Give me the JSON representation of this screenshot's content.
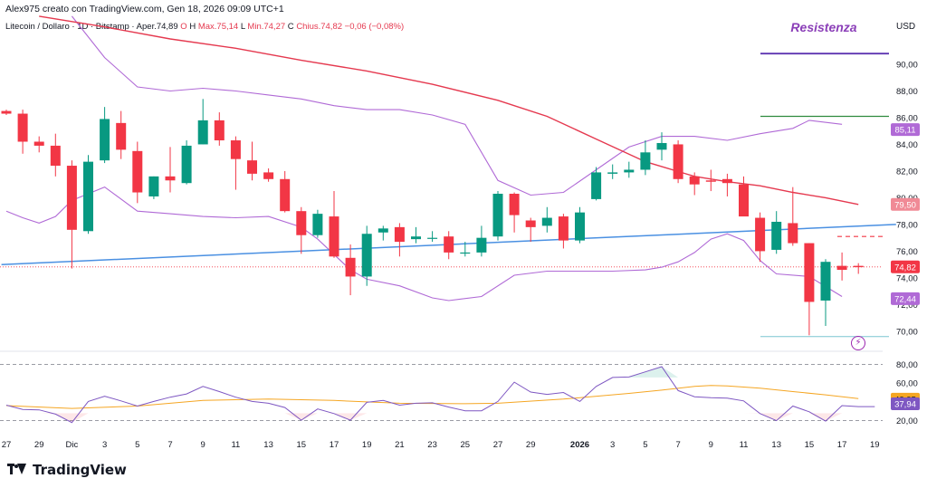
{
  "header": {
    "byline": "Alex975 creato con TradingView.com, Gen 18, 2026 09:09 UTC+1",
    "symbol": "Litecoin / Dollaro · 1D · Bitstamp",
    "open_label": "O",
    "open_text": "Aper.74,89",
    "high_text": "H",
    "high_value": "Max.75,14",
    "low_text": "L",
    "low_value": "Min.74,27",
    "close_text": "C",
    "close_value": "Chius.74,82",
    "change_value": "−0,06 (−0,08%)"
  },
  "currency": "USD",
  "annotation": "Resistenza",
  "brand": "TradingView",
  "colors": {
    "up": "#089981",
    "down": "#f23645",
    "ma": "#e5394f",
    "bb": "#b06ad6",
    "trend": "#4a90e2",
    "rsi": "#7e57c2",
    "rsi_ma": "#f5a623",
    "resistance": "#5e35b1",
    "green_level": "#2e8b3e"
  },
  "chart_data": [
    {
      "type": "candlestick",
      "title": "Litecoin / Dollaro · 1D · Bitstamp",
      "ylim": [
        68.5,
        94
      ],
      "y_ticks": [
        70,
        72,
        74,
        76,
        78,
        80,
        82,
        84,
        86,
        88,
        90
      ],
      "y_tick_labels": [
        "70,00",
        "72,00",
        "74,00",
        "76,00",
        "78,00",
        "80,00",
        "82,00",
        "84,00",
        "86,00",
        "88,00",
        "90,00"
      ],
      "x_ticks": [
        {
          "i": 0,
          "label": "27"
        },
        {
          "i": 2,
          "label": "29"
        },
        {
          "i": 4,
          "label": "Dic"
        },
        {
          "i": 6,
          "label": "3"
        },
        {
          "i": 8,
          "label": "5"
        },
        {
          "i": 10,
          "label": "7"
        },
        {
          "i": 12,
          "label": "9"
        },
        {
          "i": 14,
          "label": "11"
        },
        {
          "i": 16,
          "label": "13"
        },
        {
          "i": 18,
          "label": "15"
        },
        {
          "i": 20,
          "label": "17"
        },
        {
          "i": 22,
          "label": "19"
        },
        {
          "i": 24,
          "label": "21"
        },
        {
          "i": 26,
          "label": "23"
        },
        {
          "i": 28,
          "label": "25"
        },
        {
          "i": 30,
          "label": "27"
        },
        {
          "i": 32,
          "label": "29"
        },
        {
          "i": 35,
          "label": "2026"
        },
        {
          "i": 37,
          "label": "3"
        },
        {
          "i": 39,
          "label": "5"
        },
        {
          "i": 41,
          "label": "7"
        },
        {
          "i": 43,
          "label": "9"
        },
        {
          "i": 45,
          "label": "11"
        },
        {
          "i": 47,
          "label": "13"
        },
        {
          "i": 49,
          "label": "15"
        },
        {
          "i": 51,
          "label": "17"
        },
        {
          "i": 53,
          "label": "19"
        }
      ],
      "candles": [
        {
          "o": 86.5,
          "h": 86.6,
          "l": 86.2,
          "c": 86.3
        },
        {
          "o": 86.3,
          "h": 86.6,
          "l": 83.3,
          "c": 84.2
        },
        {
          "o": 84.2,
          "h": 84.6,
          "l": 83.4,
          "c": 83.9
        },
        {
          "o": 83.9,
          "h": 84.8,
          "l": 81.6,
          "c": 82.4
        },
        {
          "o": 82.4,
          "h": 82.8,
          "l": 74.7,
          "c": 77.6
        },
        {
          "o": 77.5,
          "h": 83.2,
          "l": 77.3,
          "c": 82.7
        },
        {
          "o": 82.8,
          "h": 86.8,
          "l": 82.6,
          "c": 85.9
        },
        {
          "o": 85.6,
          "h": 86.5,
          "l": 82.9,
          "c": 83.6
        },
        {
          "o": 83.5,
          "h": 84.2,
          "l": 79.6,
          "c": 80.4
        },
        {
          "o": 80.1,
          "h": 81.6,
          "l": 79.9,
          "c": 81.6
        },
        {
          "o": 81.6,
          "h": 83.8,
          "l": 80.4,
          "c": 81.3
        },
        {
          "o": 81.1,
          "h": 84.3,
          "l": 81.0,
          "c": 83.9
        },
        {
          "o": 84.0,
          "h": 87.4,
          "l": 84.0,
          "c": 85.8
        },
        {
          "o": 85.8,
          "h": 86.4,
          "l": 83.9,
          "c": 84.3
        },
        {
          "o": 84.3,
          "h": 84.6,
          "l": 80.6,
          "c": 82.9
        },
        {
          "o": 82.8,
          "h": 84.2,
          "l": 81.3,
          "c": 81.8
        },
        {
          "o": 81.9,
          "h": 82.2,
          "l": 81.2,
          "c": 81.4
        },
        {
          "o": 81.4,
          "h": 82.0,
          "l": 78.9,
          "c": 79.0
        },
        {
          "o": 79.0,
          "h": 79.3,
          "l": 75.8,
          "c": 77.2
        },
        {
          "o": 77.2,
          "h": 79.1,
          "l": 77.0,
          "c": 78.8
        },
        {
          "o": 78.6,
          "h": 80.5,
          "l": 75.5,
          "c": 75.6
        },
        {
          "o": 75.5,
          "h": 76.5,
          "l": 72.7,
          "c": 74.1
        },
        {
          "o": 74.1,
          "h": 77.9,
          "l": 73.4,
          "c": 77.3
        },
        {
          "o": 77.4,
          "h": 77.9,
          "l": 76.8,
          "c": 77.7
        },
        {
          "o": 77.8,
          "h": 78.1,
          "l": 75.6,
          "c": 76.7
        },
        {
          "o": 76.9,
          "h": 77.8,
          "l": 76.6,
          "c": 77.1
        },
        {
          "o": 77.0,
          "h": 77.5,
          "l": 76.7,
          "c": 77.0
        },
        {
          "o": 77.1,
          "h": 77.5,
          "l": 75.4,
          "c": 75.9
        },
        {
          "o": 75.9,
          "h": 76.7,
          "l": 75.6,
          "c": 75.9
        },
        {
          "o": 75.9,
          "h": 77.9,
          "l": 75.6,
          "c": 77.0
        },
        {
          "o": 77.1,
          "h": 80.5,
          "l": 76.8,
          "c": 80.3
        },
        {
          "o": 80.3,
          "h": 80.4,
          "l": 77.4,
          "c": 78.7
        },
        {
          "o": 78.3,
          "h": 78.5,
          "l": 76.7,
          "c": 77.8
        },
        {
          "o": 77.9,
          "h": 79.3,
          "l": 77.4,
          "c": 78.5
        },
        {
          "o": 78.6,
          "h": 78.8,
          "l": 76.2,
          "c": 76.8
        },
        {
          "o": 76.8,
          "h": 79.3,
          "l": 76.6,
          "c": 78.9
        },
        {
          "o": 79.9,
          "h": 82.3,
          "l": 79.8,
          "c": 81.9
        },
        {
          "o": 81.8,
          "h": 82.5,
          "l": 81.4,
          "c": 81.9
        },
        {
          "o": 81.9,
          "h": 82.7,
          "l": 81.5,
          "c": 82.1
        },
        {
          "o": 82.1,
          "h": 84.3,
          "l": 81.7,
          "c": 83.4
        },
        {
          "o": 83.6,
          "h": 84.9,
          "l": 82.8,
          "c": 84.1
        },
        {
          "o": 84.0,
          "h": 84.3,
          "l": 81.1,
          "c": 81.4
        },
        {
          "o": 81.6,
          "h": 81.9,
          "l": 80.2,
          "c": 81.0
        },
        {
          "o": 81.3,
          "h": 82.1,
          "l": 80.5,
          "c": 81.2
        },
        {
          "o": 81.4,
          "h": 81.8,
          "l": 80.1,
          "c": 81.1
        },
        {
          "o": 81.0,
          "h": 81.6,
          "l": 78.7,
          "c": 78.6
        },
        {
          "o": 78.5,
          "h": 78.9,
          "l": 75.2,
          "c": 76.0
        },
        {
          "o": 76.1,
          "h": 79.0,
          "l": 75.8,
          "c": 78.2
        },
        {
          "o": 78.1,
          "h": 80.8,
          "l": 76.4,
          "c": 76.6
        },
        {
          "o": 76.6,
          "h": 76.6,
          "l": 69.7,
          "c": 72.2
        },
        {
          "o": 72.3,
          "h": 75.4,
          "l": 70.4,
          "c": 75.2
        },
        {
          "o": 74.9,
          "h": 75.9,
          "l": 73.8,
          "c": 74.6
        },
        {
          "o": 74.9,
          "h": 75.1,
          "l": 74.3,
          "c": 74.8
        }
      ],
      "ma": [
        [
          2,
          93.6
        ],
        [
          6,
          92.8
        ],
        [
          10,
          91.9
        ],
        [
          14,
          91.2
        ],
        [
          18,
          90.3
        ],
        [
          22,
          89.5
        ],
        [
          26,
          88.5
        ],
        [
          30,
          87.3
        ],
        [
          33,
          86.1
        ],
        [
          36,
          84.4
        ],
        [
          39,
          82.7
        ],
        [
          42,
          81.6
        ],
        [
          44,
          81.2
        ],
        [
          46,
          80.9
        ],
        [
          48,
          80.4
        ],
        [
          50,
          80.0
        ],
        [
          52,
          79.5
        ]
      ],
      "bb_upper": [
        [
          4,
          93.6
        ],
        [
          6,
          90.5
        ],
        [
          8,
          88.3
        ],
        [
          10,
          88.0
        ],
        [
          12,
          88.2
        ],
        [
          14,
          88.0
        ],
        [
          16,
          87.7
        ],
        [
          18,
          87.4
        ],
        [
          20,
          86.9
        ],
        [
          22,
          86.6
        ],
        [
          24,
          86.6
        ],
        [
          26,
          86.2
        ],
        [
          28,
          85.5
        ],
        [
          30,
          81.3
        ],
        [
          32,
          80.2
        ],
        [
          34,
          80.4
        ],
        [
          36,
          82.1
        ],
        [
          38,
          83.8
        ],
        [
          40,
          84.6
        ],
        [
          42,
          84.6
        ],
        [
          44,
          84.3
        ],
        [
          46,
          84.8
        ],
        [
          48,
          85.2
        ],
        [
          49,
          85.8
        ],
        [
          51,
          85.5
        ]
      ],
      "bb_lower": [
        [
          0,
          79.0
        ],
        [
          1,
          78.5
        ],
        [
          2,
          78.1
        ],
        [
          3,
          78.6
        ],
        [
          4,
          79.8
        ],
        [
          6,
          80.8
        ],
        [
          8,
          79.0
        ],
        [
          10,
          78.8
        ],
        [
          12,
          78.6
        ],
        [
          14,
          78.5
        ],
        [
          16,
          78.6
        ],
        [
          18,
          77.8
        ],
        [
          19,
          76.9
        ],
        [
          21,
          74.6
        ],
        [
          22,
          73.9
        ],
        [
          24,
          73.4
        ],
        [
          26,
          72.5
        ],
        [
          27,
          72.3
        ],
        [
          29,
          72.6
        ],
        [
          31,
          74.2
        ],
        [
          33,
          74.5
        ],
        [
          35,
          74.5
        ],
        [
          37,
          74.5
        ],
        [
          39,
          74.6
        ],
        [
          40,
          74.8
        ],
        [
          41,
          75.2
        ],
        [
          42,
          75.9
        ],
        [
          43,
          76.9
        ],
        [
          44,
          77.3
        ],
        [
          45,
          76.8
        ],
        [
          46,
          75.3
        ],
        [
          47,
          74.3
        ],
        [
          49,
          74.1
        ],
        [
          51,
          72.6
        ]
      ],
      "trend_line": [
        [
          -0.3,
          75.0
        ],
        [
          54.3,
          78.0
        ]
      ],
      "resistance_level": 90.8,
      "green_level": 86.1,
      "support_level": 69.6,
      "dashed_level": 77.1,
      "last_price_level": 74.82,
      "price_labels": [
        {
          "value": 85.11,
          "text": "85,11",
          "color": "#b06ad6"
        },
        {
          "value": 79.5,
          "text": "79,50",
          "color": "#f08a96"
        },
        {
          "value": 74.82,
          "text": "74,82",
          "color": "#f23645"
        },
        {
          "value": 72.44,
          "text": "72,44",
          "color": "#b06ad6"
        }
      ]
    },
    {
      "type": "line",
      "title": "",
      "ylim": [
        10,
        90
      ],
      "levels": [
        80,
        20
      ],
      "y_tick_labels": [
        "80,00",
        "60,00",
        "40,00",
        "20,00"
      ],
      "y_ticks": [
        80,
        60,
        40,
        20
      ],
      "series": [
        {
          "values": [
            [
              0,
              36.5
            ],
            [
              1,
              32.0
            ],
            [
              2,
              31.5
            ],
            [
              3,
              27.0
            ],
            [
              4,
              18.0
            ],
            [
              5,
              40.5
            ],
            [
              6,
              46.0
            ],
            [
              7,
              41.0
            ],
            [
              8,
              35.5
            ],
            [
              9,
              40.5
            ],
            [
              10,
              45.0
            ],
            [
              11,
              48.5
            ],
            [
              12,
              56.5
            ],
            [
              13,
              51.0
            ],
            [
              14,
              45.0
            ],
            [
              15,
              40.5
            ],
            [
              16,
              38.5
            ],
            [
              17,
              34.0
            ],
            [
              18,
              20.5
            ],
            [
              19,
              32.5
            ],
            [
              20,
              27.5
            ],
            [
              21,
              20.5
            ],
            [
              22,
              39.5
            ],
            [
              23,
              41.5
            ],
            [
              24,
              36.5
            ],
            [
              25,
              38.5
            ],
            [
              26,
              39.0
            ],
            [
              27,
              34.5
            ],
            [
              28,
              30.5
            ],
            [
              29,
              30.5
            ],
            [
              30,
              40.5
            ],
            [
              31,
              61.0
            ],
            [
              32,
              50.5
            ],
            [
              33,
              48.0
            ],
            [
              34,
              50.0
            ],
            [
              35,
              40.5
            ],
            [
              36,
              56.5
            ],
            [
              37,
              66.0
            ],
            [
              38,
              66.5
            ],
            [
              39,
              72.0
            ],
            [
              40,
              77.5
            ],
            [
              41,
              52.0
            ],
            [
              42,
              45.5
            ],
            [
              43,
              44.5
            ],
            [
              44,
              44.0
            ],
            [
              45,
              41.0
            ],
            [
              46,
              27.5
            ],
            [
              47,
              20.0
            ],
            [
              48,
              35.5
            ],
            [
              49,
              29.5
            ],
            [
              50,
              19.5
            ],
            [
              51,
              36.0
            ],
            [
              52,
              35.0
            ],
            [
              53,
              35.0
            ]
          ]
        },
        {
          "values": [
            [
              0,
              36.0
            ],
            [
              4,
              33.0
            ],
            [
              8,
              35.5
            ],
            [
              12,
              41.5
            ],
            [
              16,
              43.0
            ],
            [
              20,
              41.5
            ],
            [
              24,
              38.5
            ],
            [
              28,
              38.0
            ],
            [
              30,
              38.5
            ],
            [
              34,
              43.0
            ],
            [
              38,
              49.0
            ],
            [
              40,
              52.5
            ],
            [
              42,
              56.5
            ],
            [
              43,
              57.5
            ],
            [
              44,
              57.0
            ],
            [
              46,
              54.5
            ],
            [
              48,
              51.0
            ],
            [
              50,
              47.5
            ],
            [
              52,
              43.5
            ]
          ]
        }
      ],
      "value_labels": [
        {
          "value": 42.95,
          "text": "42,95",
          "color": "#f5a623"
        },
        {
          "value": 37.94,
          "text": "37,94",
          "color": "#7e57c2"
        }
      ]
    }
  ]
}
